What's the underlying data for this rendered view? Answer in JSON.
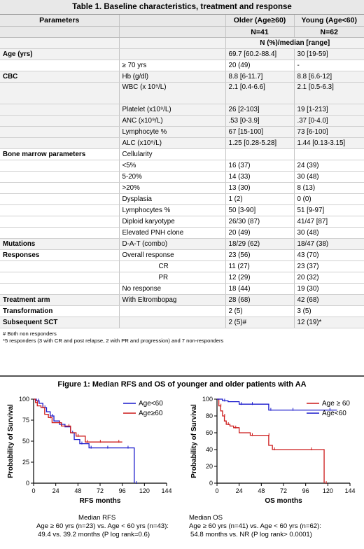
{
  "table": {
    "title": "Table 1. Baseline characteristics, treatment and response",
    "header": {
      "parameters": "Parameters",
      "older_1": "Older (Age≥60)",
      "older_2": "N=41",
      "young_1": "Young (Age<60)",
      "young_2": "N=62"
    },
    "subheader": "N (%)/median [range]",
    "rows": [
      {
        "p": "Age (yrs)",
        "s": "",
        "o": "69.7 [60.2-88.4]",
        "y": "30 [19-59]",
        "g": true
      },
      {
        "p": "",
        "s": "≥ 70 yrs",
        "o": "20 (49)",
        "y": "-",
        "g": false
      },
      {
        "p": "CBC",
        "s": "Hb (g/dl)",
        "o": "8.8 [6-11.7]",
        "y": "8.8 [6.6-12]",
        "g": true
      },
      {
        "p": "",
        "s": "WBC (x 10⁹/L)",
        "o": "2.1 [0.4-6.6]",
        "y": "2.1 [0.5-6.3]",
        "g": true,
        "tall": true
      },
      {
        "p": "",
        "s": "Platelet (x10⁹/L)",
        "o": "26 [2-103]",
        "y": "19 [1-213]",
        "g": true
      },
      {
        "p": "",
        "s": "ANC (x10⁹/L)",
        "o": ".53 [0-3.9]",
        "y": ".37 [0-4.0]",
        "g": true
      },
      {
        "p": "",
        "s": "Lymphocyte %",
        "o": "67 [15-100]",
        "y": "73 [6-100]",
        "g": true
      },
      {
        "p": "",
        "s": "ALC (x10⁹/L)",
        "o": "1.25 [0.28-5.28]",
        "y": "1.44 [0.13-3.15]",
        "g": true
      },
      {
        "p": "Bone marrow parameters",
        "s": "Cellularity",
        "o": "",
        "y": "",
        "g": false
      },
      {
        "p": "",
        "s": "<5%",
        "o": "16 (37)",
        "y": "24 (39)",
        "g": false
      },
      {
        "p": "",
        "s": "5-20%",
        "o": "14 (33)",
        "y": "30 (48)",
        "g": false
      },
      {
        "p": "",
        "s": ">20%",
        "o": "13 (30)",
        "y": "8 (13)",
        "g": false
      },
      {
        "p": "",
        "s": "Dysplasia",
        "o": "1 (2)",
        "y": "0 (0)",
        "g": false
      },
      {
        "p": "",
        "s": "Lymphocytes %",
        "o": "50 [3-90]",
        "y": "51 [9-97]",
        "g": false
      },
      {
        "p": "",
        "s": "Diploid karyotype",
        "o": "26/30 (87)",
        "y": "41/47 [87]",
        "g": false
      },
      {
        "p": "",
        "s": "Elevated PNH clone",
        "o": "20 (49)",
        "y": "30 (48)",
        "g": false
      },
      {
        "p": "Mutations",
        "s": "D-A-T (combo)",
        "o": "18/29 (62)",
        "y": "18/47 (38)",
        "g": true
      },
      {
        "p": "Responses",
        "s": "Overall response",
        "o": "23 (56)",
        "y": "43 (70)",
        "g": false
      },
      {
        "p": "",
        "s": "CR",
        "o": "11 (27)",
        "y": "23 (37)",
        "g": false,
        "indent": true
      },
      {
        "p": "",
        "s": "PR",
        "o": "12 (29)",
        "y": "20 (32)",
        "g": false,
        "indent": true
      },
      {
        "p": "",
        "s": "No response",
        "o": "18 (44)",
        "y": "19 (30)",
        "g": false
      },
      {
        "p": "Treatment arm",
        "s": "With Eltrombopag",
        "o": "28 (68)",
        "y": "42 (68)",
        "g": true
      },
      {
        "p": "Transformation",
        "s": "",
        "o": "2 (5)",
        "y": "3 (5)",
        "g": false
      },
      {
        "p": "Subsequent SCT",
        "s": "",
        "o": "2 (5)#",
        "y": "12 (19)*",
        "g": true
      }
    ],
    "footnote_1": "# Both non responders",
    "footnote_2": "*5 responders (3 with CR and post relapse, 2 with PR and progression) and 7 non-responders"
  },
  "figure": {
    "title": "Figure 1: Median RFS and OS of younger and older patients with AA",
    "ylabel": "Probability of Survival",
    "caption_left": [
      "Median RFS",
      "Age ≥ 60 yrs (n=23) vs. Age < 60 yrs (n=43):",
      "49.4 vs. 39.2 months (P log rank=0.6)"
    ],
    "caption_right": [
      "Median OS",
      "Age ≥ 60 yrs (n=41) vs. Age < 60 yrs (n=62):",
      "54.8 months vs. NR (P log rank> 0.0001)"
    ]
  },
  "chart_data": [
    {
      "type": "line",
      "title": "",
      "xlabel": "RFS months",
      "ylabel": "Probability of Survival",
      "xlim": [
        0,
        144
      ],
      "ylim": [
        0,
        100
      ],
      "xticks": [
        0,
        24,
        48,
        72,
        96,
        120,
        144
      ],
      "yticks": [
        0,
        25,
        50,
        75,
        100
      ],
      "legend_position": "top-right",
      "series": [
        {
          "name": "Age<60",
          "color": "#1a1acc",
          "x": [
            0,
            3,
            6,
            10,
            14,
            18,
            22,
            28,
            34,
            40,
            44,
            50,
            54,
            60,
            70,
            78,
            90,
            100,
            109,
            109
          ],
          "y": [
            100,
            98,
            95,
            90,
            85,
            80,
            74,
            70,
            67,
            60,
            52,
            47,
            47,
            42,
            42,
            42,
            42,
            42,
            42,
            0
          ]
        },
        {
          "name": "Age≥60",
          "color": "#cc1a1a",
          "x": [
            0,
            2,
            4,
            8,
            12,
            16,
            20,
            26,
            30,
            36,
            40,
            46,
            52,
            56,
            62,
            70,
            80,
            90,
            96
          ],
          "y": [
            100,
            96,
            92,
            90,
            82,
            78,
            72,
            72,
            68,
            68,
            60,
            56,
            56,
            49,
            49,
            49,
            49,
            49,
            49
          ]
        }
      ]
    },
    {
      "type": "line",
      "title": "",
      "xlabel": "OS months",
      "ylabel": "Probability of Survival",
      "xlim": [
        0,
        144
      ],
      "ylim": [
        0,
        100
      ],
      "xticks": [
        0,
        24,
        48,
        72,
        96,
        120,
        144
      ],
      "yticks": [
        0,
        20,
        40,
        60,
        80,
        100
      ],
      "legend_position": "top-right",
      "series": [
        {
          "name": "Age ≥ 60",
          "color": "#cc1a1a",
          "x": [
            0,
            2,
            4,
            6,
            8,
            10,
            14,
            18,
            24,
            36,
            48,
            54,
            56,
            60,
            80,
            100,
            116,
            116
          ],
          "y": [
            100,
            92,
            86,
            80,
            74,
            70,
            68,
            66,
            60,
            57,
            57,
            57,
            45,
            40,
            40,
            40,
            40,
            0
          ]
        },
        {
          "name": "Age<60",
          "color": "#1a1acc",
          "x": [
            0,
            6,
            12,
            24,
            30,
            36,
            48,
            56,
            60,
            80,
            100,
            120,
            130
          ],
          "y": [
            100,
            98,
            97,
            94,
            94,
            94,
            94,
            87,
            87,
            87,
            87,
            87,
            87
          ]
        }
      ]
    }
  ]
}
